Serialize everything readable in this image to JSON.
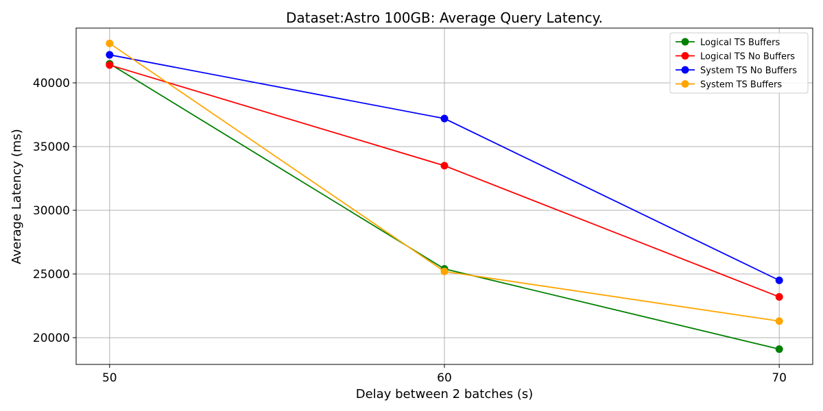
{
  "chart_data": {
    "type": "line",
    "title": "Dataset:Astro 100GB: Average Query Latency.",
    "xlabel": "Delay between 2 batches (s)",
    "ylabel": "Average Latency (ms)",
    "x": [
      50,
      60,
      70
    ],
    "xticks": [
      "50",
      "60",
      "70"
    ],
    "xlim": [
      49,
      71
    ],
    "yticks": [
      20000,
      25000,
      30000,
      35000,
      40000
    ],
    "ytick_labels": [
      "20000",
      "25000",
      "30000",
      "35000",
      "40000"
    ],
    "ylim": [
      17900,
      44300
    ],
    "grid": true,
    "legend_position": "top-right",
    "series": [
      {
        "name": "Logical TS Buffers",
        "color": "#008000",
        "values": [
          41500,
          25400,
          19100
        ]
      },
      {
        "name": "Logical TS No Buffers",
        "color": "#ff0000",
        "values": [
          41400,
          33500,
          23200
        ]
      },
      {
        "name": "System TS No Buffers",
        "color": "#0000ff",
        "values": [
          42200,
          37200,
          24500
        ]
      },
      {
        "name": "System TS Buffers",
        "color": "#ffa500",
        "values": [
          43100,
          25200,
          21300
        ]
      }
    ]
  }
}
